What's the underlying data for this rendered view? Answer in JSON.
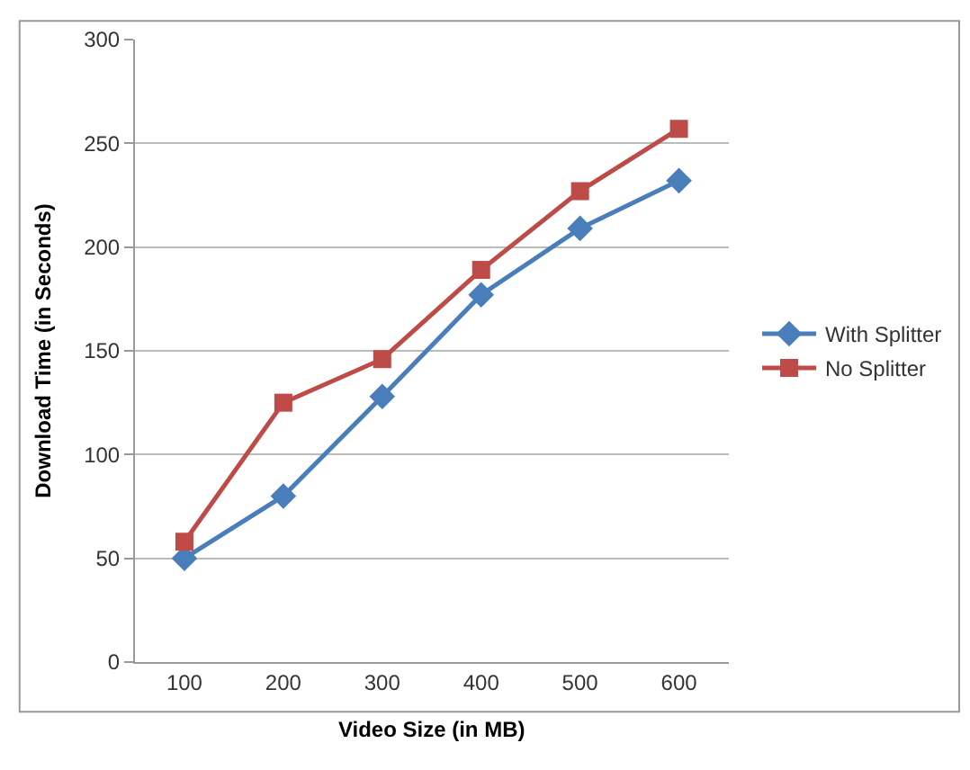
{
  "chart_data": {
    "type": "line",
    "xlabel": "Video Size (in MB)",
    "ylabel": "Download Time (in Seconds)",
    "categories": [
      "100",
      "200",
      "300",
      "400",
      "500",
      "600"
    ],
    "series": [
      {
        "name": "With Splitter",
        "color": "#4a7ebb",
        "marker": "diamond",
        "values": [
          50,
          80,
          128,
          177,
          209,
          232
        ]
      },
      {
        "name": "No Splitter",
        "color": "#be4b48",
        "marker": "square",
        "values": [
          58,
          125,
          146,
          189,
          227,
          257
        ]
      }
    ],
    "ylim": [
      0,
      300
    ],
    "yticks": [
      0,
      50,
      100,
      150,
      200,
      250,
      300
    ],
    "grid": "y",
    "legend": "right"
  }
}
